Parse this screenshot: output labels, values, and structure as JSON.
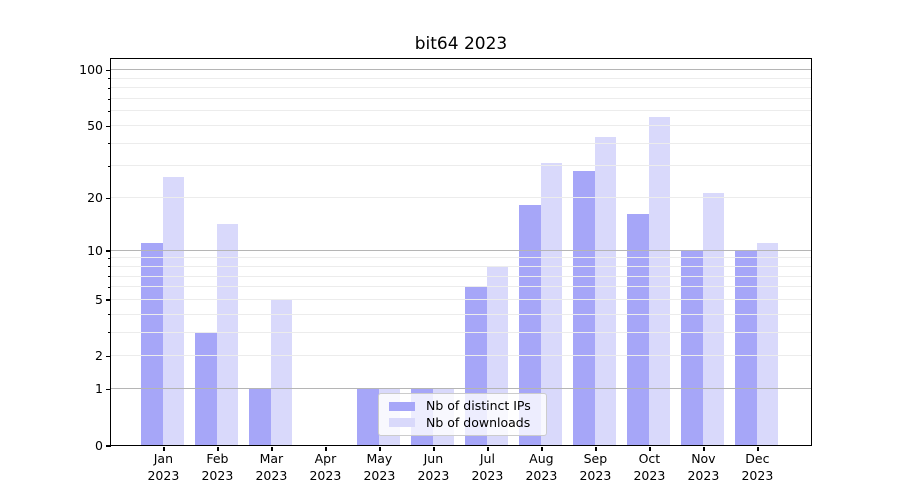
{
  "figure": {
    "background": "#ffffff"
  },
  "chart_data": {
    "type": "bar",
    "title": "bit64 2023",
    "categories": [
      "Jan 2023",
      "Feb 2023",
      "Mar 2023",
      "Apr 2023",
      "May 2023",
      "Jun 2023",
      "Jul 2023",
      "Aug 2023",
      "Sep 2023",
      "Oct 2023",
      "Nov 2023",
      "Dec 2023"
    ],
    "x_tick_line1": [
      "Jan",
      "Feb",
      "Mar",
      "Apr",
      "May",
      "Jun",
      "Jul",
      "Aug",
      "Sep",
      "Oct",
      "Nov",
      "Dec"
    ],
    "x_tick_line2": "2023",
    "series": [
      {
        "name": "Nb of distinct IPs",
        "color": "#a6a6f8",
        "values": [
          11,
          3,
          1,
          0,
          1,
          1,
          6,
          18,
          28,
          16,
          10,
          10
        ]
      },
      {
        "name": "Nb of downloads",
        "color": "#d9d9fb",
        "values": [
          26,
          14,
          5,
          0,
          1,
          1,
          8,
          31,
          43,
          55,
          21,
          11
        ]
      }
    ],
    "xlabel": "",
    "ylabel": "",
    "yscale": "log1p",
    "ylim": [
      0,
      115
    ],
    "yticks_labeled": [
      0,
      1,
      2,
      5,
      10,
      20,
      50,
      100
    ],
    "grid": true,
    "grid_major_at": [
      1,
      10,
      100
    ],
    "grid_minor_at": [
      2,
      3,
      4,
      5,
      6,
      7,
      8,
      9,
      20,
      30,
      40,
      50,
      60,
      70,
      80,
      90
    ],
    "grid_drawn_above_bars": true,
    "legend_position": "lower-center-left-inside",
    "colors": {
      "grid_major": "#b5b5b5",
      "grid_minor": "#ececec",
      "spine": "#000000",
      "text": "#000000"
    }
  }
}
